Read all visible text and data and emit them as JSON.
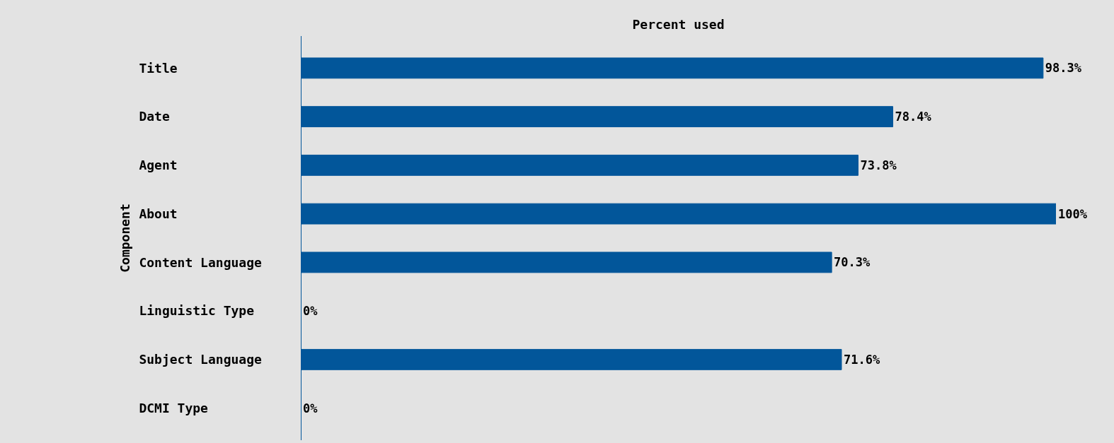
{
  "chart_data": {
    "type": "bar",
    "orientation": "horizontal",
    "title": "Percent used",
    "ylabel": "Component",
    "categories": [
      "Title",
      "Date",
      "Agent",
      "About",
      "Content Language",
      "Linguistic Type",
      "Subject Language",
      "DCMI Type"
    ],
    "values": [
      98.3,
      78.4,
      73.8,
      100,
      70.3,
      0,
      71.6,
      0
    ],
    "value_labels": [
      "98.3%",
      "78.4%",
      "73.8%",
      "100%",
      "70.3%",
      "0%",
      "71.6%",
      "0%"
    ],
    "color": "#02569a",
    "xlim": [
      0,
      100
    ],
    "grid": false,
    "legend": false
  }
}
